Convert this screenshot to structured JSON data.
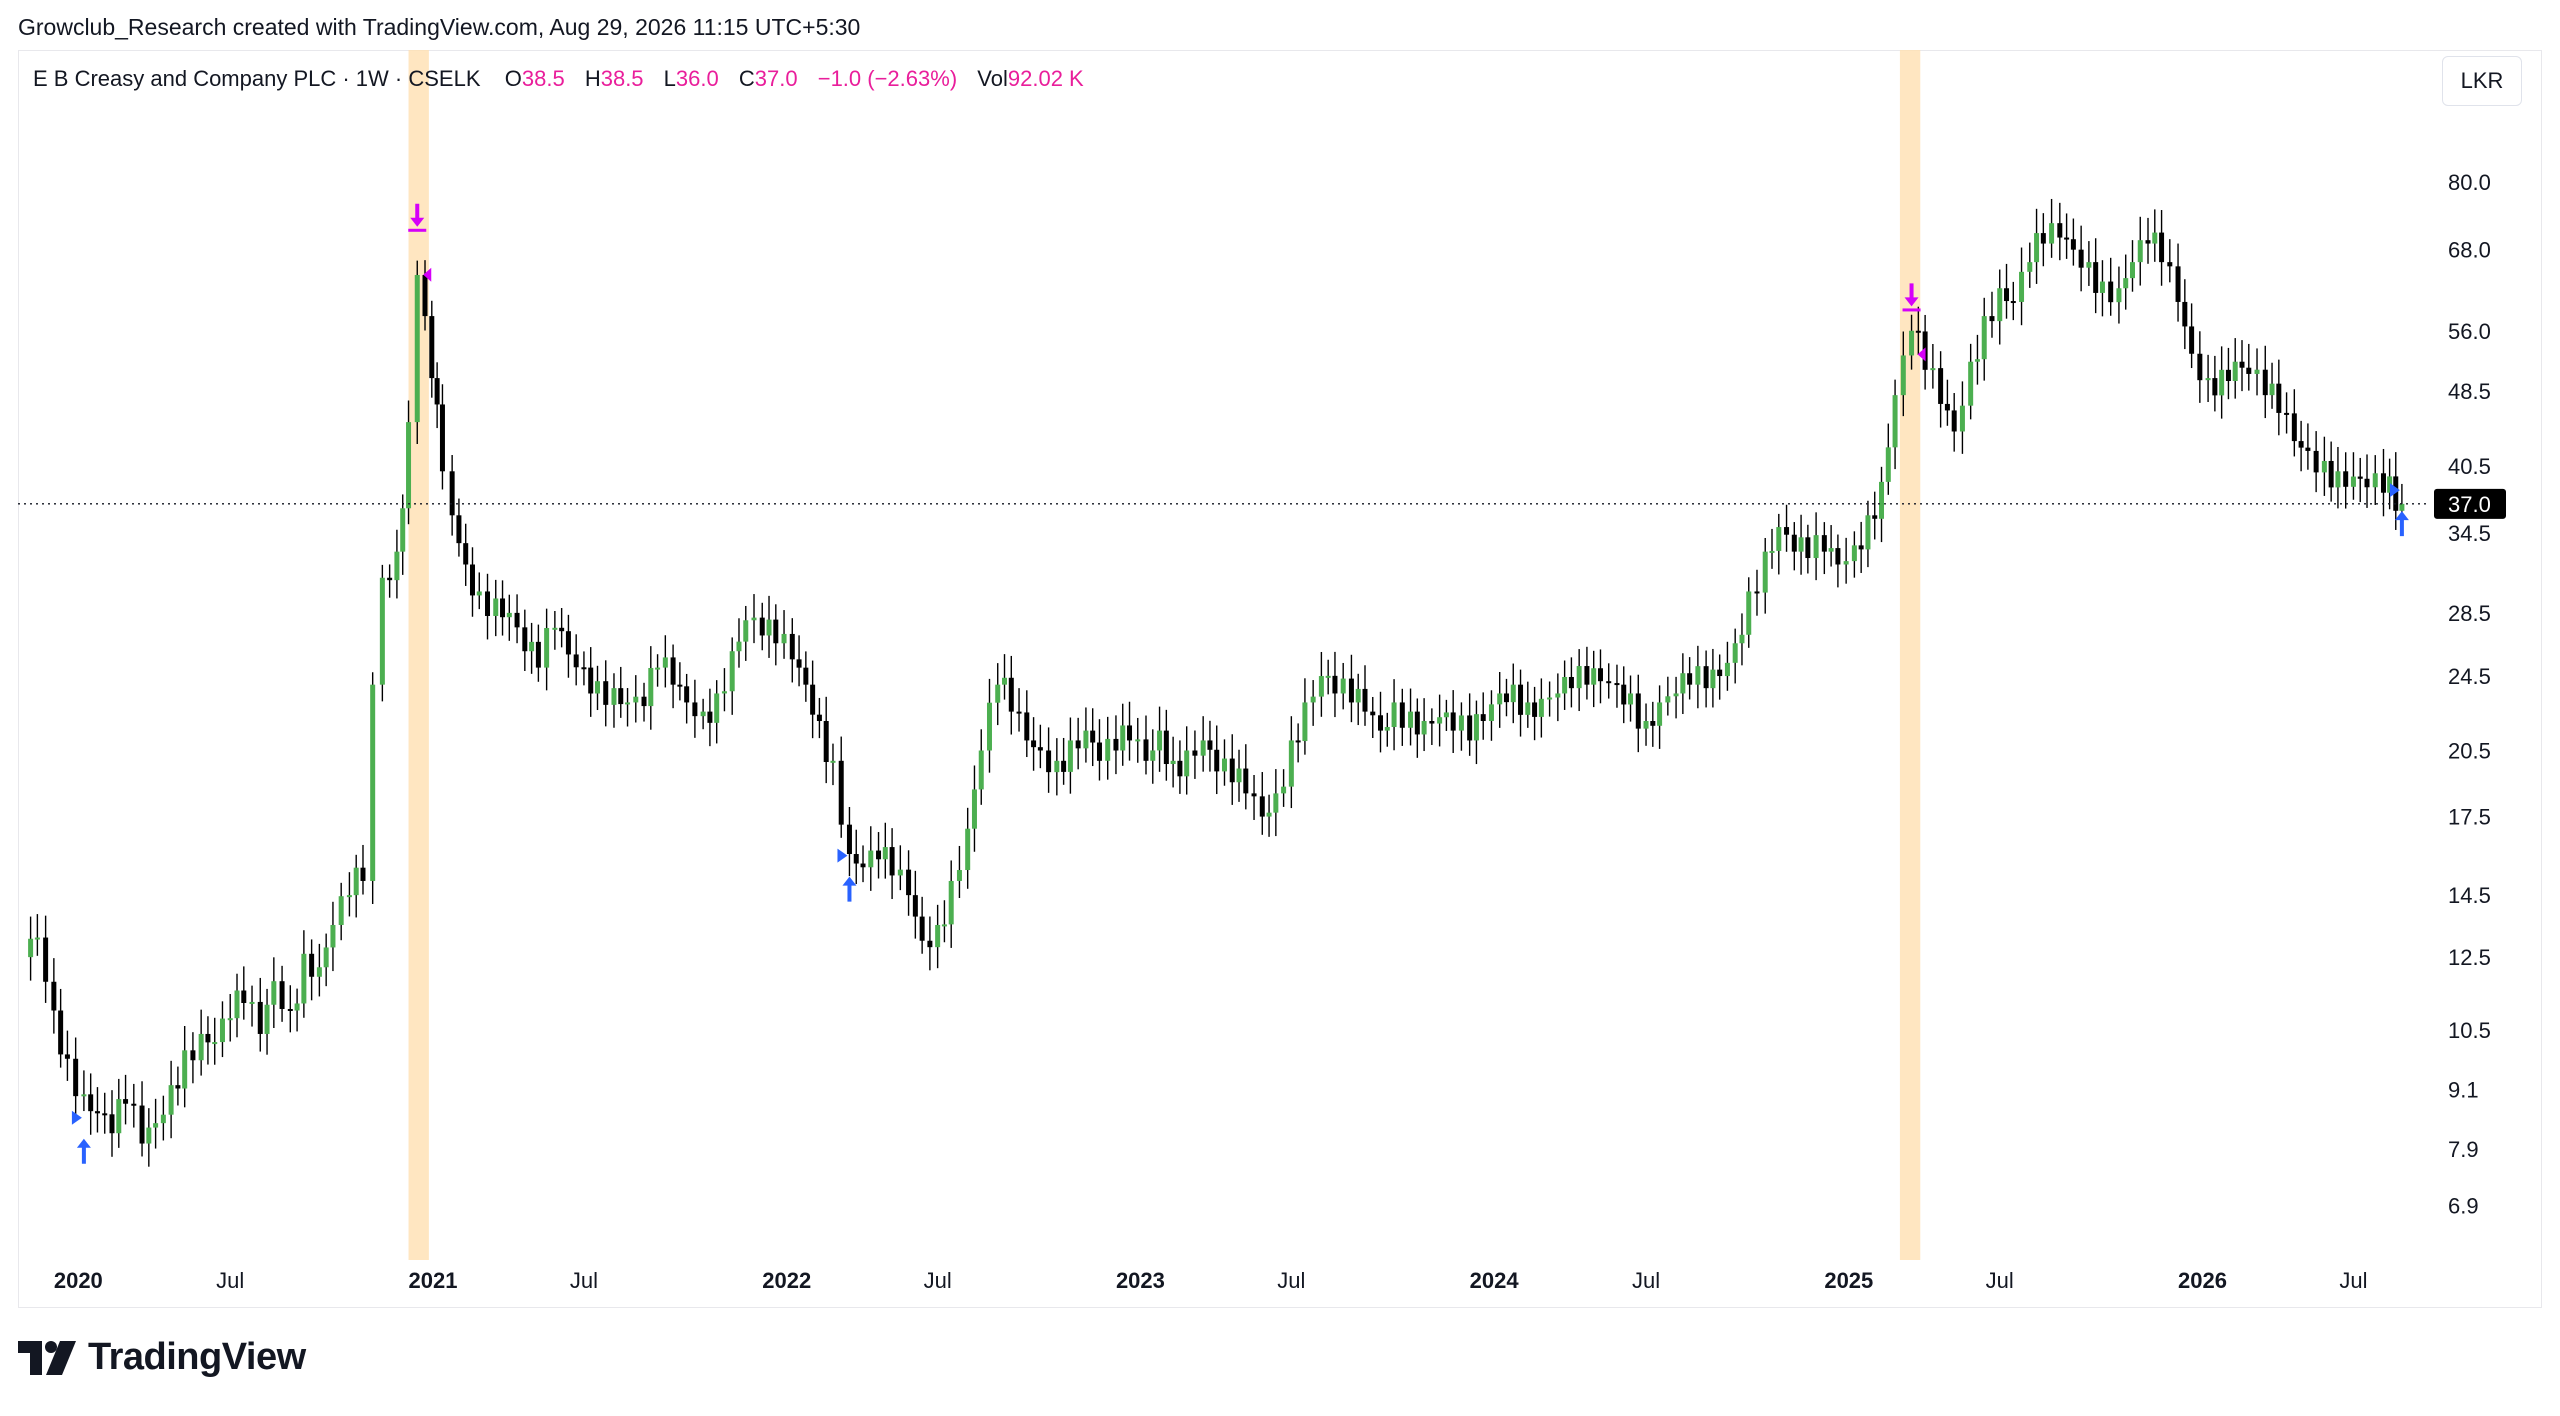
{
  "header": {
    "credit": "Growclub_Research created with TradingView.com, Aug 29, 2026 11:15 UTC+5:30"
  },
  "legend": {
    "symbol": "E B Creasy and Company PLC · 1W · CSELK",
    "o_label": "O",
    "o_value": "38.5",
    "h_label": "H",
    "h_value": "38.5",
    "l_label": "L",
    "l_value": "36.0",
    "c_label": "C",
    "c_value": "37.0",
    "change": "−1.0 (−2.63%)",
    "vol_label": "Vol",
    "vol_value": "92.02 K"
  },
  "currency_button": "LKR",
  "brand": {
    "name": "TradingView"
  },
  "colors": {
    "up": "#4caf50",
    "down": "#000000",
    "highlight": "#ffe0b2",
    "buy_marker": "#2962ff",
    "sell_marker": "#d500f9",
    "price_tag_bg": "#000000",
    "text_accent": "#e91e9b"
  },
  "chart_data": {
    "type": "candlestick",
    "scale": "log",
    "interval": "1W",
    "ylim": [
      6.2,
      95
    ],
    "y_ticks": [
      "80.0",
      "68.0",
      "56.0",
      "48.5",
      "40.5",
      "34.5",
      "28.5",
      "24.5",
      "20.5",
      "17.5",
      "14.5",
      "12.5",
      "10.5",
      "9.1",
      "7.9",
      "6.9"
    ],
    "x_ticks": [
      {
        "label": "2020",
        "date": "2020-01-01",
        "bold": true
      },
      {
        "label": "Jul",
        "date": "2020-07-01",
        "bold": false
      },
      {
        "label": "2021",
        "date": "2021-01-01",
        "bold": true
      },
      {
        "label": "Jul",
        "date": "2021-07-01",
        "bold": false
      },
      {
        "label": "2022",
        "date": "2022-01-01",
        "bold": true
      },
      {
        "label": "Jul",
        "date": "2022-07-01",
        "bold": false
      },
      {
        "label": "2023",
        "date": "2023-01-01",
        "bold": true
      },
      {
        "label": "Jul",
        "date": "2023-07-01",
        "bold": false
      },
      {
        "label": "2024",
        "date": "2024-01-01",
        "bold": true
      },
      {
        "label": "Jul",
        "date": "2024-07-01",
        "bold": false
      },
      {
        "label": "2025",
        "date": "2025-01-01",
        "bold": true
      },
      {
        "label": "Jul",
        "date": "2025-07-01",
        "bold": false
      },
      {
        "label": "2026",
        "date": "2026-01-01",
        "bold": true
      },
      {
        "label": "Jul",
        "date": "2026-07-01",
        "bold": false
      }
    ],
    "last_price": "37.0",
    "close_series": [
      [
        "2019-12-01",
        12.5
      ],
      [
        "2019-12-15",
        13.1
      ],
      [
        "2020-01-01",
        11.0
      ],
      [
        "2020-01-15",
        9.8
      ],
      [
        "2020-02-01",
        9.0
      ],
      [
        "2020-02-15",
        8.6
      ],
      [
        "2020-03-01",
        8.2
      ],
      [
        "2020-03-15",
        8.8
      ],
      [
        "2020-04-01",
        8.0
      ],
      [
        "2020-04-15",
        8.4
      ],
      [
        "2020-05-01",
        9.2
      ],
      [
        "2020-05-15",
        10.0
      ],
      [
        "2020-06-01",
        10.4
      ],
      [
        "2020-06-15",
        10.2
      ],
      [
        "2020-07-01",
        10.8
      ],
      [
        "2020-07-15",
        11.2
      ],
      [
        "2020-08-01",
        10.4
      ],
      [
        "2020-08-15",
        11.8
      ],
      [
        "2020-09-01",
        11.0
      ],
      [
        "2020-09-15",
        12.6
      ],
      [
        "2020-10-01",
        12.2
      ],
      [
        "2020-10-15",
        13.5
      ],
      [
        "2020-11-01",
        14.5
      ],
      [
        "2020-11-15",
        15.0
      ],
      [
        "2020-11-25",
        24.0
      ],
      [
        "2020-12-05",
        31.0
      ],
      [
        "2020-12-20",
        33.0
      ],
      [
        "2021-01-01",
        45.0
      ],
      [
        "2021-01-10",
        64.0
      ],
      [
        "2021-01-18",
        58.0
      ],
      [
        "2021-01-25",
        50.0
      ],
      [
        "2021-02-05",
        40.0
      ],
      [
        "2021-02-15",
        36.0
      ],
      [
        "2021-03-01",
        32.0
      ],
      [
        "2021-03-15",
        30.0
      ],
      [
        "2021-04-01",
        29.5
      ],
      [
        "2021-04-15",
        28.5
      ],
      [
        "2021-05-01",
        26.0
      ],
      [
        "2021-05-15",
        25.0
      ],
      [
        "2021-06-01",
        27.5
      ],
      [
        "2021-06-15",
        25.8
      ],
      [
        "2021-07-01",
        25.0
      ],
      [
        "2021-07-15",
        24.2
      ],
      [
        "2021-08-01",
        23.8
      ],
      [
        "2021-08-15",
        23.0
      ],
      [
        "2021-09-01",
        22.8
      ],
      [
        "2021-09-15",
        25.0
      ],
      [
        "2021-10-01",
        24.0
      ],
      [
        "2021-10-15",
        23.0
      ],
      [
        "2021-11-01",
        22.5
      ],
      [
        "2021-11-15",
        23.5
      ],
      [
        "2021-12-01",
        26.0
      ],
      [
        "2021-12-15",
        28.0
      ],
      [
        "2022-01-01",
        27.0
      ],
      [
        "2022-01-15",
        26.5
      ],
      [
        "2022-02-01",
        25.5
      ],
      [
        "2022-02-15",
        24.0
      ],
      [
        "2022-03-01",
        22.0
      ],
      [
        "2022-03-15",
        20.0
      ],
      [
        "2022-04-01",
        16.0
      ],
      [
        "2022-04-15",
        15.5
      ],
      [
        "2022-05-01",
        15.8
      ],
      [
        "2022-05-15",
        15.2
      ],
      [
        "2022-06-01",
        14.5
      ],
      [
        "2022-06-15",
        13.0
      ],
      [
        "2022-07-01",
        13.5
      ],
      [
        "2022-07-15",
        15.0
      ],
      [
        "2022-08-01",
        17.0
      ],
      [
        "2022-08-15",
        20.5
      ],
      [
        "2022-09-01",
        24.0
      ],
      [
        "2022-09-15",
        22.5
      ],
      [
        "2022-10-01",
        21.0
      ],
      [
        "2022-10-15",
        20.5
      ],
      [
        "2022-11-01",
        20.0
      ],
      [
        "2022-11-15",
        21.0
      ],
      [
        "2022-12-01",
        21.5
      ],
      [
        "2022-12-15",
        20.0
      ],
      [
        "2023-01-01",
        20.5
      ],
      [
        "2023-01-15",
        21.0
      ],
      [
        "2023-02-01",
        20.0
      ],
      [
        "2023-02-15",
        21.5
      ],
      [
        "2023-03-01",
        20.0
      ],
      [
        "2023-03-15",
        20.5
      ],
      [
        "2023-04-01",
        21.0
      ],
      [
        "2023-04-15",
        19.5
      ],
      [
        "2023-05-01",
        19.0
      ],
      [
        "2023-05-15",
        18.5
      ],
      [
        "2023-06-01",
        17.5
      ],
      [
        "2023-06-15",
        18.5
      ],
      [
        "2023-07-01",
        21.0
      ],
      [
        "2023-07-15",
        23.0
      ],
      [
        "2023-08-01",
        24.5
      ],
      [
        "2023-08-15",
        23.5
      ],
      [
        "2023-09-01",
        23.0
      ],
      [
        "2023-09-15",
        22.5
      ],
      [
        "2023-10-01",
        21.5
      ],
      [
        "2023-10-15",
        23.0
      ],
      [
        "2023-11-01",
        22.5
      ],
      [
        "2023-11-15",
        22.0
      ],
      [
        "2023-12-01",
        22.2
      ],
      [
        "2023-12-15",
        21.5
      ],
      [
        "2024-01-01",
        21.0
      ],
      [
        "2024-01-15",
        22.0
      ],
      [
        "2024-02-01",
        23.5
      ],
      [
        "2024-02-15",
        24.0
      ],
      [
        "2024-03-01",
        23.0
      ],
      [
        "2024-03-15",
        23.2
      ],
      [
        "2024-04-01",
        23.5
      ],
      [
        "2024-04-15",
        23.8
      ],
      [
        "2024-05-01",
        24.0
      ],
      [
        "2024-05-15",
        24.2
      ],
      [
        "2024-06-01",
        24.0
      ],
      [
        "2024-06-15",
        23.5
      ],
      [
        "2024-07-01",
        22.0
      ],
      [
        "2024-07-15",
        23.0
      ],
      [
        "2024-08-01",
        23.5
      ],
      [
        "2024-08-15",
        24.0
      ],
      [
        "2024-09-01",
        23.8
      ],
      [
        "2024-09-15",
        24.5
      ],
      [
        "2024-10-01",
        26.5
      ],
      [
        "2024-10-15",
        30.0
      ],
      [
        "2024-11-01",
        33.0
      ],
      [
        "2024-11-15",
        35.0
      ],
      [
        "2024-12-01",
        33.0
      ],
      [
        "2024-12-15",
        32.5
      ],
      [
        "2025-01-01",
        33.0
      ],
      [
        "2025-01-15",
        32.0
      ],
      [
        "2025-02-01",
        33.5
      ],
      [
        "2025-02-15",
        36.0
      ],
      [
        "2025-03-01",
        39.0
      ],
      [
        "2025-03-15",
        48.0
      ],
      [
        "2025-04-01",
        56.0
      ],
      [
        "2025-04-15",
        51.0
      ],
      [
        "2025-05-01",
        47.0
      ],
      [
        "2025-05-15",
        44.0
      ],
      [
        "2025-06-01",
        52.0
      ],
      [
        "2025-06-15",
        58.0
      ],
      [
        "2025-07-01",
        62.0
      ],
      [
        "2025-07-15",
        60.0
      ],
      [
        "2025-08-01",
        66.0
      ],
      [
        "2025-08-15",
        69.0
      ],
      [
        "2025-09-01",
        70.0
      ],
      [
        "2025-09-15",
        68.0
      ],
      [
        "2025-10-01",
        66.0
      ],
      [
        "2025-10-15",
        63.0
      ],
      [
        "2025-11-01",
        62.0
      ],
      [
        "2025-11-15",
        66.0
      ],
      [
        "2025-12-01",
        69.0
      ],
      [
        "2025-12-15",
        66.0
      ],
      [
        "2026-01-01",
        60.0
      ],
      [
        "2026-01-15",
        53.0
      ],
      [
        "2026-02-01",
        50.0
      ],
      [
        "2026-02-15",
        51.0
      ],
      [
        "2026-03-01",
        52.0
      ],
      [
        "2026-03-15",
        50.5
      ],
      [
        "2026-04-01",
        48.0
      ],
      [
        "2026-04-15",
        46.0
      ],
      [
        "2026-05-01",
        43.0
      ],
      [
        "2026-05-15",
        42.0
      ],
      [
        "2026-06-01",
        41.0
      ],
      [
        "2026-06-15",
        40.0
      ],
      [
        "2026-07-01",
        39.5
      ],
      [
        "2026-07-15",
        38.5
      ],
      [
        "2026-08-01",
        38.0
      ],
      [
        "2026-08-20",
        37.0
      ]
    ],
    "highlight_bands": [
      {
        "from": "2021-01-01",
        "to": "2021-01-22"
      },
      {
        "from": "2025-03-20",
        "to": "2025-04-10"
      }
    ],
    "buy_signals": [
      {
        "date": "2020-02-01",
        "price": 7.9
      },
      {
        "date": "2022-04-01",
        "price": 14.8
      },
      {
        "date": "2026-08-20",
        "price": 35.5
      }
    ],
    "sell_signals": [
      {
        "date": "2021-01-10",
        "price": 72.0
      },
      {
        "date": "2025-04-01",
        "price": 59.5
      }
    ]
  }
}
